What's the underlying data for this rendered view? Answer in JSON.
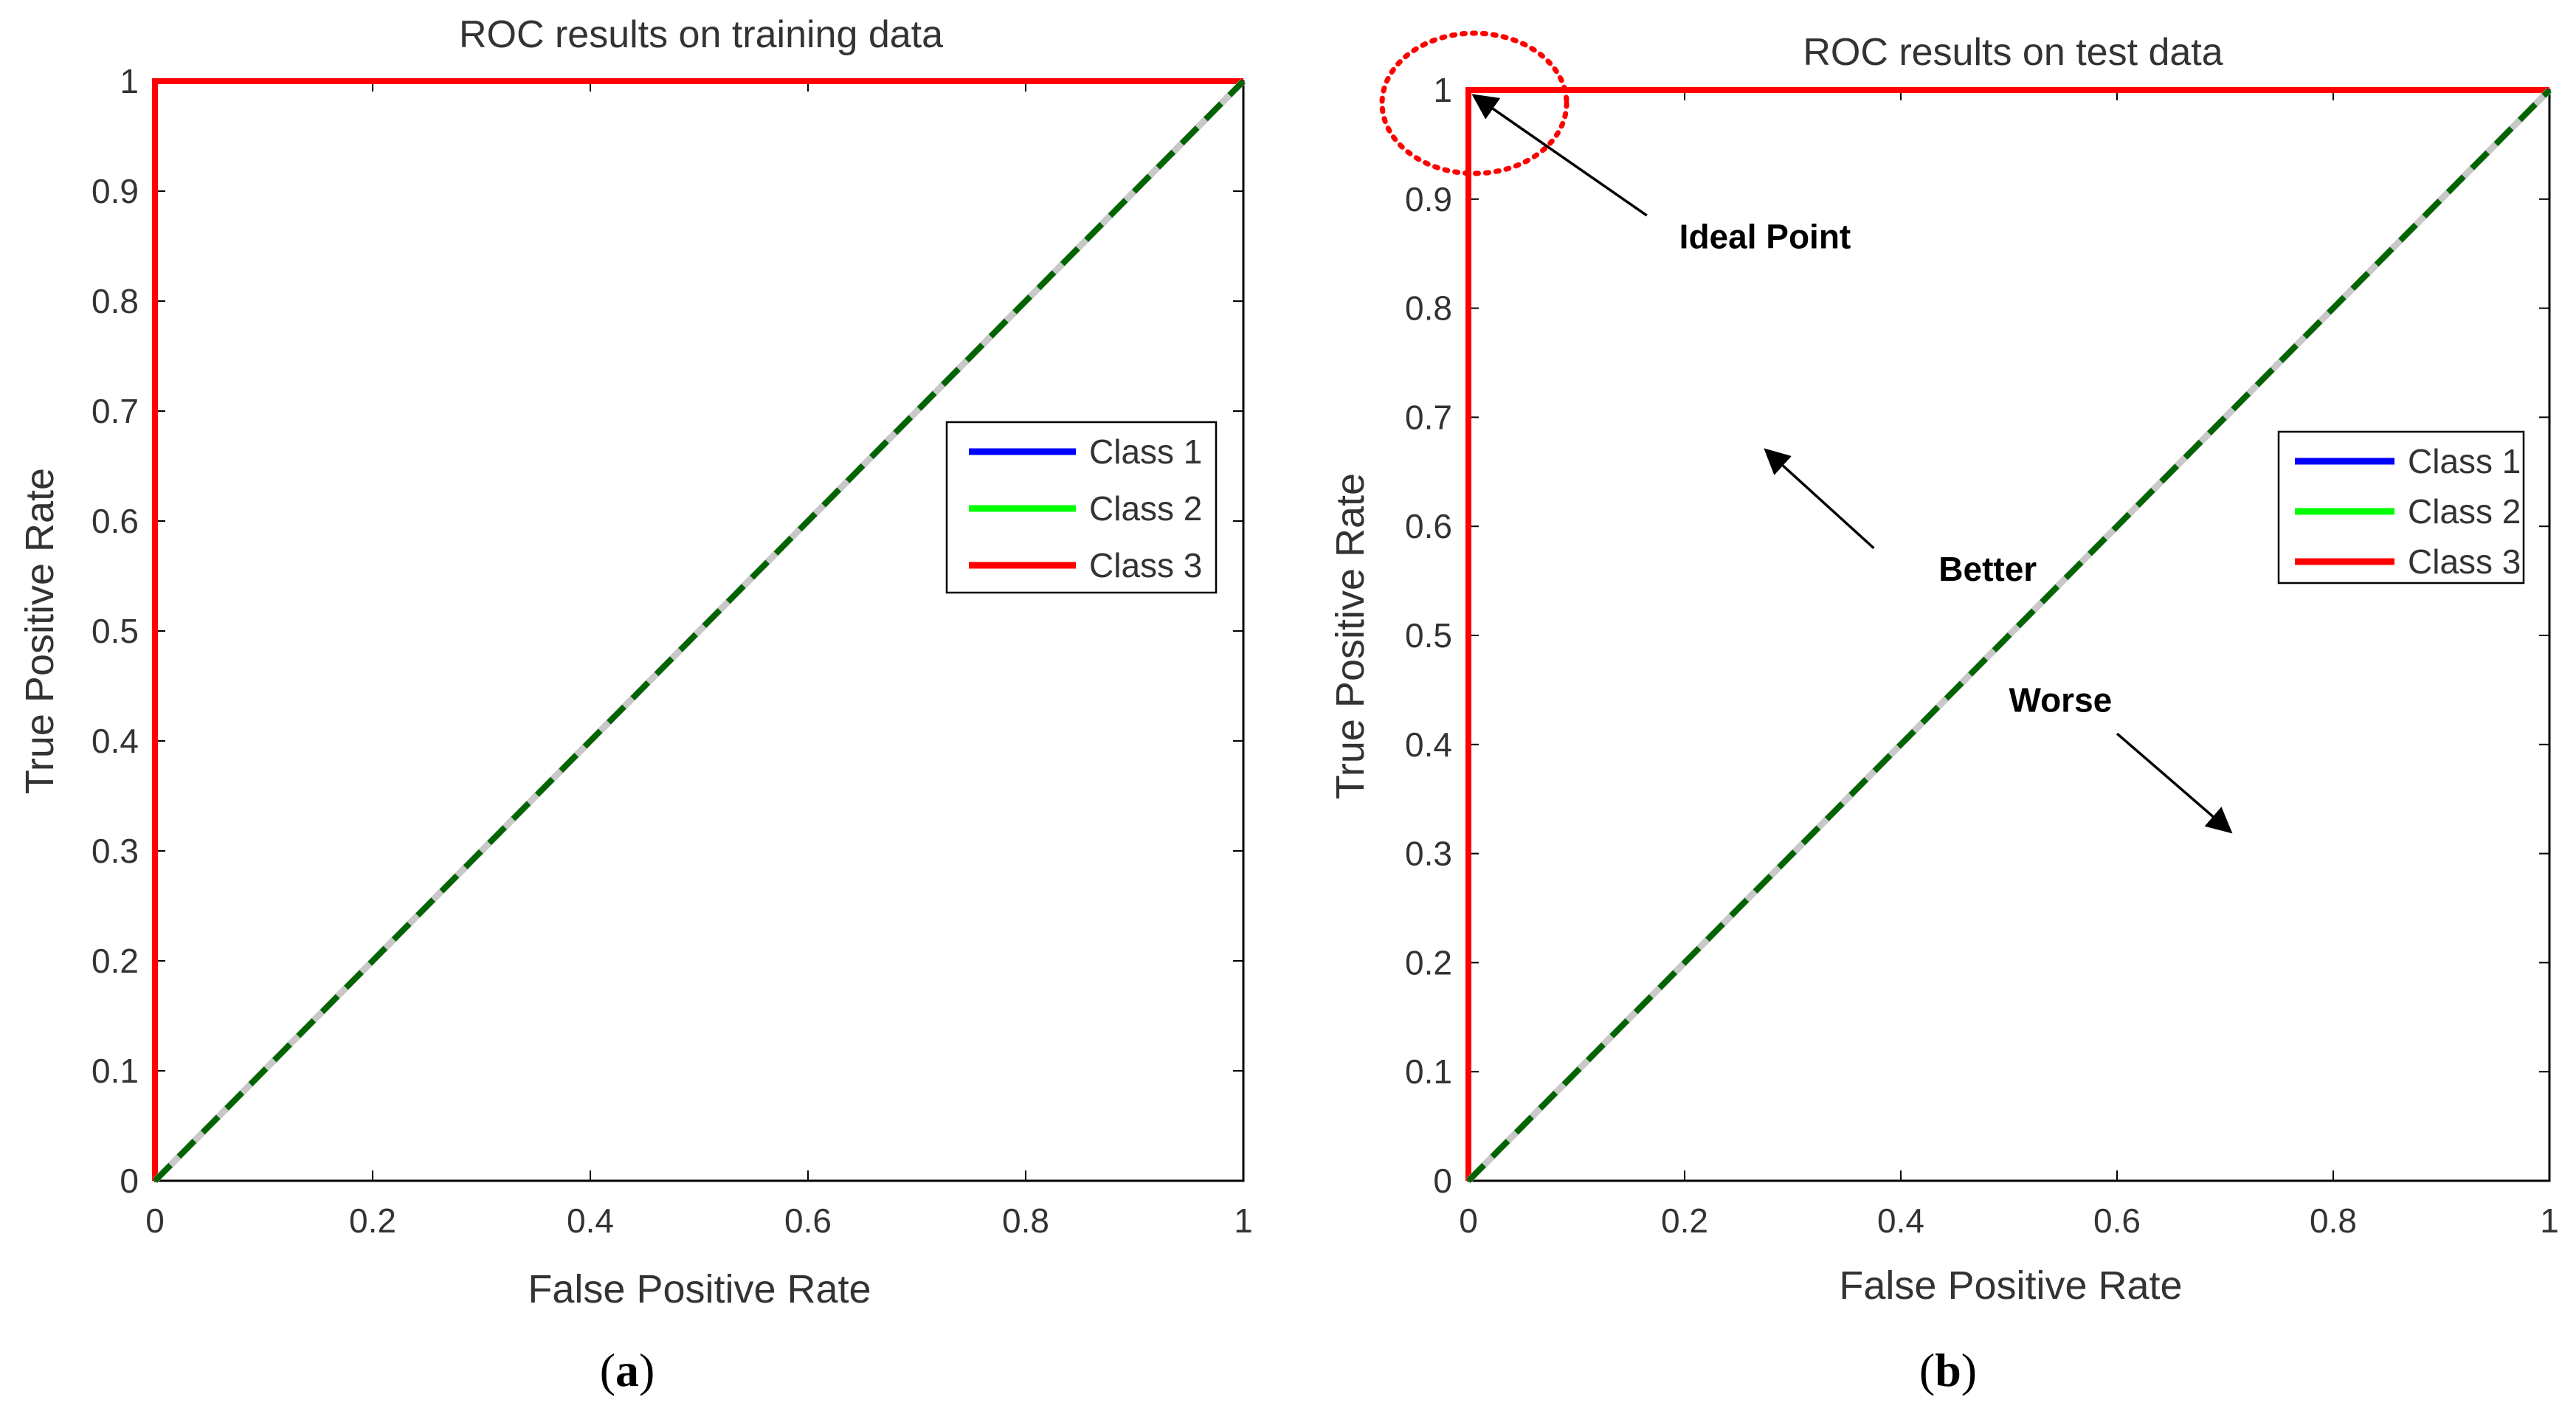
{
  "chart_data": [
    {
      "type": "line",
      "title": "ROC results on training data",
      "xlabel": "False Positive Rate",
      "ylabel": "True Positive Rate",
      "xlim": [
        0,
        1
      ],
      "ylim": [
        0,
        1
      ],
      "xticks": [
        0,
        0.2,
        0.4,
        0.6,
        0.8,
        1
      ],
      "yticks": [
        0,
        0.1,
        0.2,
        0.3,
        0.4,
        0.5,
        0.6,
        0.7,
        0.8,
        0.9,
        1
      ],
      "xtick_labels": [
        "0",
        "0.2",
        "0.4",
        "0.6",
        "0.8",
        "1"
      ],
      "ytick_labels": [
        "0",
        "0.1",
        "0.2",
        "0.3",
        "0.4",
        "0.5",
        "0.6",
        "0.7",
        "0.8",
        "0.9",
        "1"
      ],
      "grid": false,
      "legend_position": "right",
      "series": [
        {
          "name": "Class 1",
          "color": "#0000ff",
          "x": [
            0,
            0,
            1
          ],
          "y": [
            0,
            1,
            1
          ]
        },
        {
          "name": "Class 2",
          "color": "#00ff00",
          "x": [
            0,
            0,
            1
          ],
          "y": [
            0,
            1,
            1
          ]
        },
        {
          "name": "Class 3",
          "color": "#ff0000",
          "x": [
            0,
            0,
            1
          ],
          "y": [
            0,
            1,
            1
          ]
        }
      ],
      "reference_line": {
        "x": [
          0,
          1
        ],
        "y": [
          0,
          1
        ],
        "under_color": "#c8c8c8",
        "dash_color": "#006400"
      },
      "annotations": [],
      "panel_label": {
        "open": "(",
        "letter": "a",
        "close": ")"
      }
    },
    {
      "type": "line",
      "title": "ROC results on test data",
      "xlabel": "False Positive Rate",
      "ylabel": "True Positive Rate",
      "xlim": [
        0,
        1
      ],
      "ylim": [
        0,
        1
      ],
      "xticks": [
        0,
        0.2,
        0.4,
        0.6,
        0.8,
        1
      ],
      "yticks": [
        0,
        0.1,
        0.2,
        0.3,
        0.4,
        0.5,
        0.6,
        0.7,
        0.8,
        0.9,
        1
      ],
      "xtick_labels": [
        "0",
        "0.2",
        "0.4",
        "0.6",
        "0.8",
        "1"
      ],
      "ytick_labels": [
        "0",
        "0.1",
        "0.2",
        "0.3",
        "0.4",
        "0.5",
        "0.6",
        "0.7",
        "0.8",
        "0.9",
        "1"
      ],
      "grid": false,
      "legend_position": "right",
      "series": [
        {
          "name": "Class 1",
          "color": "#0000ff",
          "x": [
            0,
            0,
            1
          ],
          "y": [
            0,
            1,
            1
          ]
        },
        {
          "name": "Class 2",
          "color": "#00ff00",
          "x": [
            0,
            0,
            1
          ],
          "y": [
            0,
            1,
            1
          ]
        },
        {
          "name": "Class 3",
          "color": "#ff0000",
          "x": [
            0,
            0,
            1
          ],
          "y": [
            0,
            1,
            1
          ]
        }
      ],
      "reference_line": {
        "x": [
          0,
          1
        ],
        "y": [
          0,
          1
        ],
        "under_color": "#c8c8c8",
        "dash_color": "#006400"
      },
      "annotations": [
        {
          "text": "Ideal Point",
          "x": 0.195,
          "y": 0.855,
          "arrow_from": [
            0.165,
            0.885
          ],
          "arrow_to": [
            0.005,
            0.995
          ]
        },
        {
          "text": "Better",
          "x": 0.435,
          "y": 0.55,
          "arrow_from": [
            0.375,
            0.58
          ],
          "arrow_to": [
            0.275,
            0.67
          ]
        },
        {
          "text": "Worse",
          "x": 0.5,
          "y": 0.43,
          "arrow_from": [
            0.6,
            0.41
          ],
          "arrow_to": [
            0.705,
            0.32
          ]
        }
      ],
      "ideal_point_marker": {
        "x": 0,
        "y": 1,
        "color": "#ff0000"
      },
      "panel_label": {
        "open": "(",
        "letter": "b",
        "close": ")"
      }
    }
  ]
}
